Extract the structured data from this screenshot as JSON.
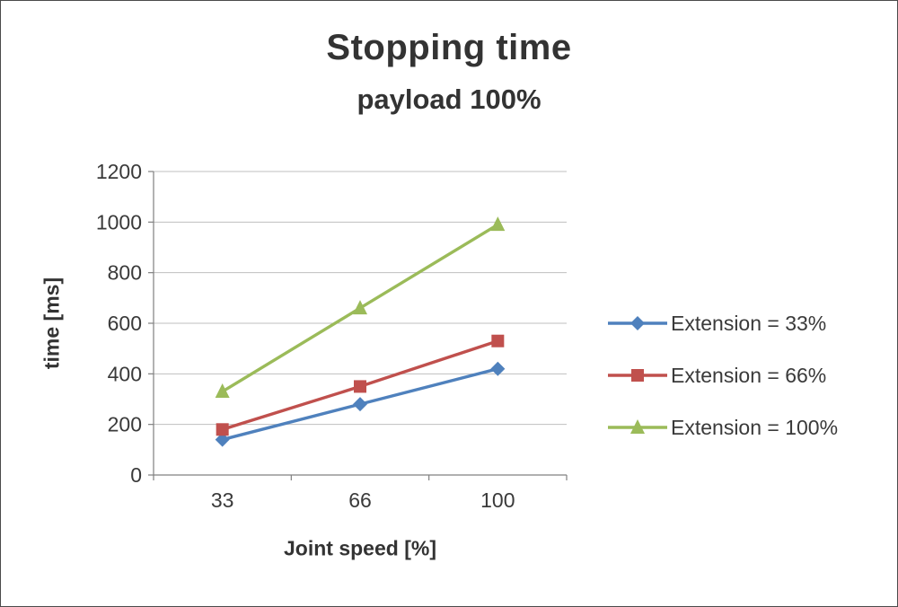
{
  "chart_data": {
    "type": "line",
    "title": "Stopping time",
    "subtitle": "payload 100%",
    "xlabel": "Joint speed [%]",
    "ylabel": "time [ms]",
    "categories": [
      "33",
      "66",
      "100"
    ],
    "ylim": [
      0,
      1200
    ],
    "ytick_step": 200,
    "grid": true,
    "legend_position": "right",
    "series": [
      {
        "name": "Extension = 33%",
        "marker": "diamond",
        "color": "#4F81BD",
        "values": [
          140,
          280,
          420
        ]
      },
      {
        "name": "Extension = 66%",
        "marker": "square",
        "color": "#C0504D",
        "values": [
          180,
          350,
          530
        ]
      },
      {
        "name": "Extension = 100%",
        "marker": "triangle",
        "color": "#9BBB59",
        "values": [
          330,
          660,
          990
        ]
      }
    ],
    "colors": {
      "grid": "#BFBFBF",
      "axis": "#808080",
      "tick_text": "#3a3a3a",
      "title_text": "#333333"
    }
  }
}
